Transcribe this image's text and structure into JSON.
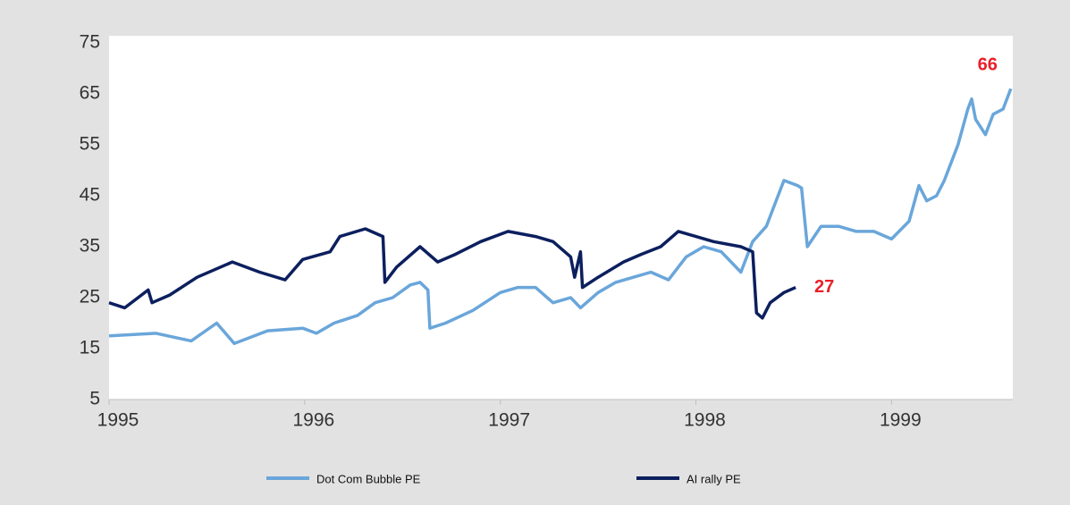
{
  "chart_data": {
    "type": "line",
    "xlim": [
      1995,
      1999.62
    ],
    "xticks": [
      1995,
      1996,
      1997,
      1998,
      1999
    ],
    "ylim": [
      5,
      75
    ],
    "yticks": [
      5,
      15,
      25,
      35,
      45,
      55,
      65,
      75
    ],
    "legend": "bottom",
    "series": [
      {
        "name": "Dot Com Bubble PE",
        "color": "#6aa6da",
        "end_label": "66",
        "x": [
          1995.0,
          1995.24,
          1995.42,
          1995.55,
          1995.64,
          1995.81,
          1995.99,
          1996.06,
          1996.15,
          1996.27,
          1996.36,
          1996.45,
          1996.54,
          1996.59,
          1996.63,
          1996.64,
          1996.72,
          1996.86,
          1997.0,
          1997.09,
          1997.18,
          1997.27,
          1997.36,
          1997.41,
          1997.5,
          1997.59,
          1997.68,
          1997.77,
          1997.86,
          1997.95,
          1998.04,
          1998.13,
          1998.23,
          1998.29,
          1998.36,
          1998.41,
          1998.45,
          1998.52,
          1998.54,
          1998.57,
          1998.64,
          1998.73,
          1998.82,
          1998.91,
          1999.0,
          1999.09,
          1999.14,
          1999.18,
          1999.23,
          1999.27,
          1999.34,
          1999.39,
          1999.41,
          1999.43,
          1999.48,
          1999.52,
          1999.57,
          1999.61
        ],
        "values": [
          17.5,
          18,
          16.5,
          20,
          16,
          18.5,
          19,
          18,
          20,
          21.5,
          24,
          25,
          27.5,
          28,
          26.5,
          19,
          20,
          22.5,
          26,
          27,
          27,
          24,
          25,
          23,
          26,
          28,
          29,
          30,
          28.5,
          33,
          35,
          34,
          30,
          36,
          39,
          44,
          48,
          47,
          46.5,
          35,
          39,
          39,
          38,
          38,
          36.5,
          40,
          47,
          44,
          45,
          48,
          55,
          62,
          64,
          60,
          57,
          61,
          62,
          66
        ]
      },
      {
        "name": "AI rally PE",
        "color": "#0c1f5e",
        "end_label": "27",
        "x": [
          1995.0,
          1995.08,
          1995.2,
          1995.22,
          1995.31,
          1995.45,
          1995.63,
          1995.77,
          1995.9,
          1995.99,
          1996.13,
          1996.18,
          1996.31,
          1996.4,
          1996.41,
          1996.47,
          1996.59,
          1996.68,
          1996.77,
          1996.9,
          1997.04,
          1997.18,
          1997.27,
          1997.36,
          1997.38,
          1997.41,
          1997.42,
          1997.5,
          1997.63,
          1997.72,
          1997.82,
          1997.91,
          1998.0,
          1998.09,
          1998.23,
          1998.29,
          1998.31,
          1998.34,
          1998.38,
          1998.45,
          1998.51
        ],
        "values": [
          24,
          23,
          26.5,
          24,
          25.5,
          29,
          32,
          30,
          28.5,
          32.5,
          34,
          37,
          38.5,
          37,
          28,
          31,
          35,
          32,
          33.5,
          36,
          38,
          37,
          36,
          33,
          29,
          34,
          27,
          29,
          32,
          33.5,
          35,
          38,
          37,
          36,
          35,
          34,
          22,
          21,
          24,
          26,
          27
        ]
      }
    ]
  }
}
